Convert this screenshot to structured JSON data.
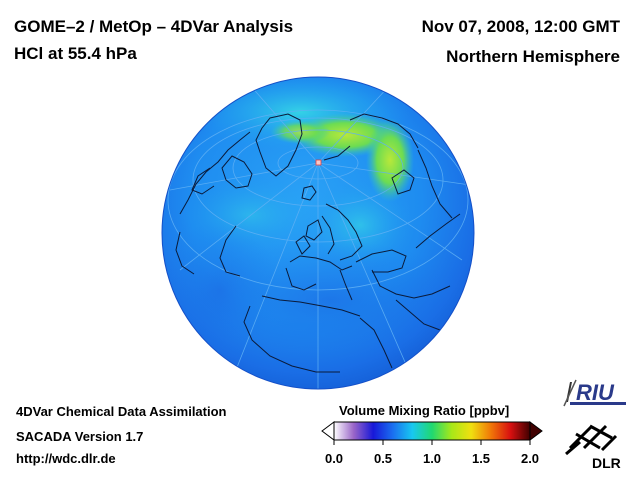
{
  "header": {
    "title_line1": "GOME–2 / MetOp – 4DVar Analysis",
    "title_line2": "HCl at 55.4 hPa",
    "date": "Nov 07, 2008, 12:00 GMT",
    "region": "Northern Hemisphere"
  },
  "footer": {
    "line1": "4DVar Chemical Data Assimilation",
    "line2": "SACADA Version 1.7",
    "line3": "http://wdc.dlr.de"
  },
  "colorbar": {
    "title": "Volume Mixing Ratio [ppbv]",
    "ticks": [
      "0.0",
      "0.5",
      "1.0",
      "1.5",
      "2.0"
    ],
    "min": 0.0,
    "max": 2.0,
    "colors": [
      "#ffffff",
      "#9a66c8",
      "#1818d8",
      "#1a6ff0",
      "#18c8f0",
      "#20d870",
      "#a8e818",
      "#f0e010",
      "#f07808",
      "#d81010",
      "#400000"
    ]
  },
  "map": {
    "projection": "orthographic",
    "ocean_field_color": "#1e90f0",
    "high_field_color": "#7ee04a"
  },
  "logos": {
    "riu_text": "RIU",
    "dlr_text": "DLR"
  }
}
